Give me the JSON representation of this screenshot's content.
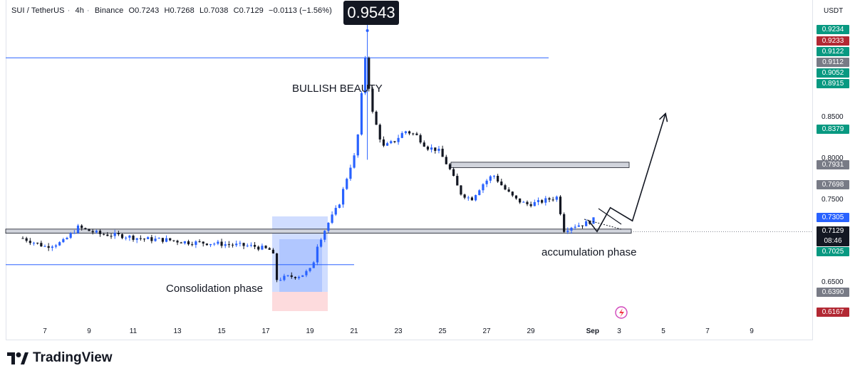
{
  "header": {
    "symbol": "SUI / TetherUS",
    "interval": "4h",
    "exchange": "Binance",
    "open": "O0.7243",
    "high": "H0.7268",
    "low": "L0.7038",
    "close": "C0.7129",
    "change": "−0.0113 (−1.56%)"
  },
  "axis_unit": "USDT",
  "peak_label": "0.9543",
  "annotations": {
    "bullish": "BULLISH BEAUTY",
    "consolidation": "Consolidation phase",
    "accumulation": "accumulation phase"
  },
  "current_price": {
    "price": "0.7129",
    "countdown": "08:46"
  },
  "brand": "TradingView",
  "colors": {
    "up": "#2962ff",
    "down": "#131722",
    "green": "#089981",
    "red": "#b22833",
    "gray": "#787b86"
  },
  "chart_data": {
    "type": "candlestick",
    "ylim": [
      0.615,
      0.97
    ],
    "x_ticks": [
      "7",
      "9",
      "11",
      "13",
      "15",
      "17",
      "19",
      "21",
      "23",
      "25",
      "27",
      "29",
      "Sep",
      "3",
      "5",
      "7",
      "9"
    ],
    "price_ticks": [
      "0.8500",
      "0.8000",
      "0.7500",
      "0.6500"
    ],
    "price_badges": [
      {
        "value": "0.9234",
        "color": "#089981"
      },
      {
        "value": "0.9233",
        "color": "#b22833"
      },
      {
        "value": "0.9122",
        "color": "#089981"
      },
      {
        "value": "0.9112",
        "color": "#787b86"
      },
      {
        "value": "0.9052",
        "color": "#089981"
      },
      {
        "value": "0.8915",
        "color": "#089981"
      },
      {
        "value": "0.8379",
        "color": "#089981"
      },
      {
        "value": "0.7931",
        "color": "#787b86"
      },
      {
        "value": "0.7698",
        "color": "#787b86"
      },
      {
        "value": "0.7305",
        "color": "#2962ff"
      },
      {
        "value": "0.7025",
        "color": "#089981"
      },
      {
        "value": "0.6390",
        "color": "#787b86"
      },
      {
        "value": "0.6167",
        "color": "#b22833"
      }
    ],
    "resistance_level": 0.9234,
    "support_level": 0.673,
    "demand_zone": [
      0.711,
      0.716
    ],
    "supply_zone": [
      0.7905,
      0.797
    ],
    "projected_path": [
      {
        "day": 31.6,
        "price": 0.727
      },
      {
        "day": 32.0,
        "price": 0.713
      },
      {
        "day": 32.6,
        "price": 0.742
      },
      {
        "day": 33.6,
        "price": 0.726
      },
      {
        "day": 35.1,
        "price": 0.856
      }
    ]
  }
}
